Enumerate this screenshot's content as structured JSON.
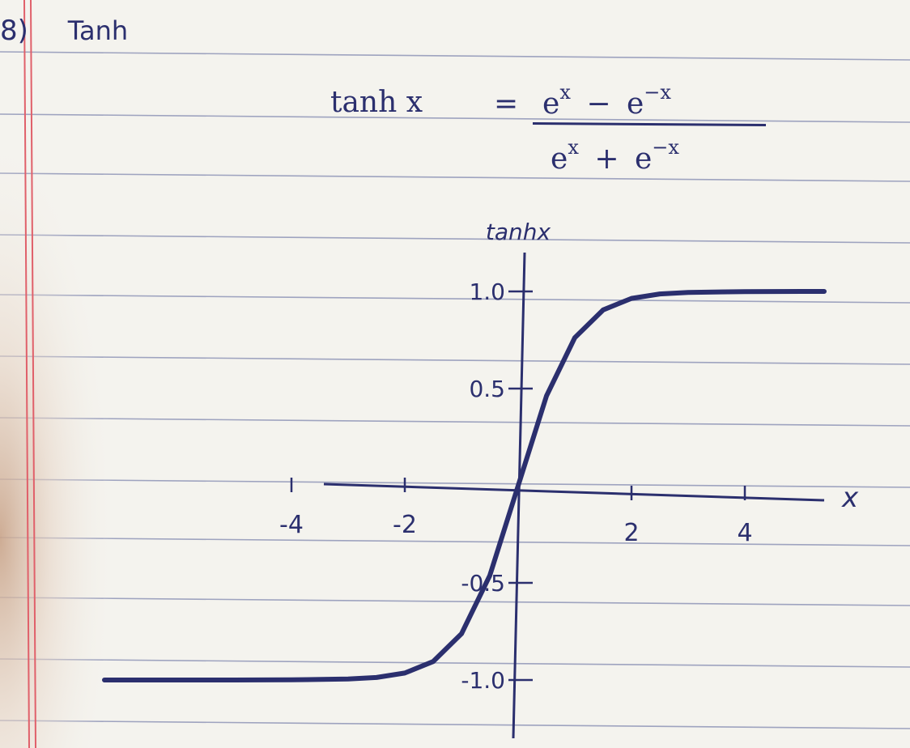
{
  "heading": {
    "number": "8)",
    "title": "Tanh"
  },
  "formula": {
    "lhs": "tanh x",
    "eq": "=",
    "numerator": {
      "a": "e",
      "a_exp": "x",
      "op": "−",
      "b": "e",
      "b_exp": "−x"
    },
    "denominator": {
      "a": "e",
      "a_exp": "x",
      "op": "+",
      "b": "e",
      "b_exp": "−x"
    }
  },
  "colors": {
    "ink": "#2b2f6e",
    "ruled_line": "#9ea3bf",
    "margin_line": "#e0606a",
    "paper": "#f4f3ee"
  },
  "chart_data": {
    "type": "line",
    "xlabel": "x",
    "ylabel": "tanhx",
    "x_ticks": [
      {
        "v": -4,
        "label": "-4"
      },
      {
        "v": -2,
        "label": "-2"
      },
      {
        "v": 2,
        "label": "2"
      },
      {
        "v": 4,
        "label": "4"
      }
    ],
    "y_ticks": [
      {
        "v": 1.0,
        "label": "1.0"
      },
      {
        "v": 0.5,
        "label": "0.5"
      },
      {
        "v": -0.5,
        "label": "-0.5"
      },
      {
        "v": -1.0,
        "label": "-1.0"
      }
    ],
    "xlim": [
      -7,
      5.4
    ],
    "ylim": [
      -1.15,
      1.1
    ],
    "series": [
      {
        "x": [
          -7.3,
          -6,
          -5,
          -4,
          -3,
          -2.5,
          -2,
          -1.5,
          -1,
          -0.5,
          0,
          0.5,
          1,
          1.5,
          2,
          2.5,
          3,
          4,
          5,
          5.4
        ],
        "y": [
          -1,
          -1,
          -1,
          -0.999,
          -0.995,
          -0.987,
          -0.964,
          -0.905,
          -0.762,
          -0.462,
          0,
          0.462,
          0.762,
          0.905,
          0.964,
          0.987,
          0.995,
          0.999,
          1,
          1
        ]
      }
    ]
  }
}
